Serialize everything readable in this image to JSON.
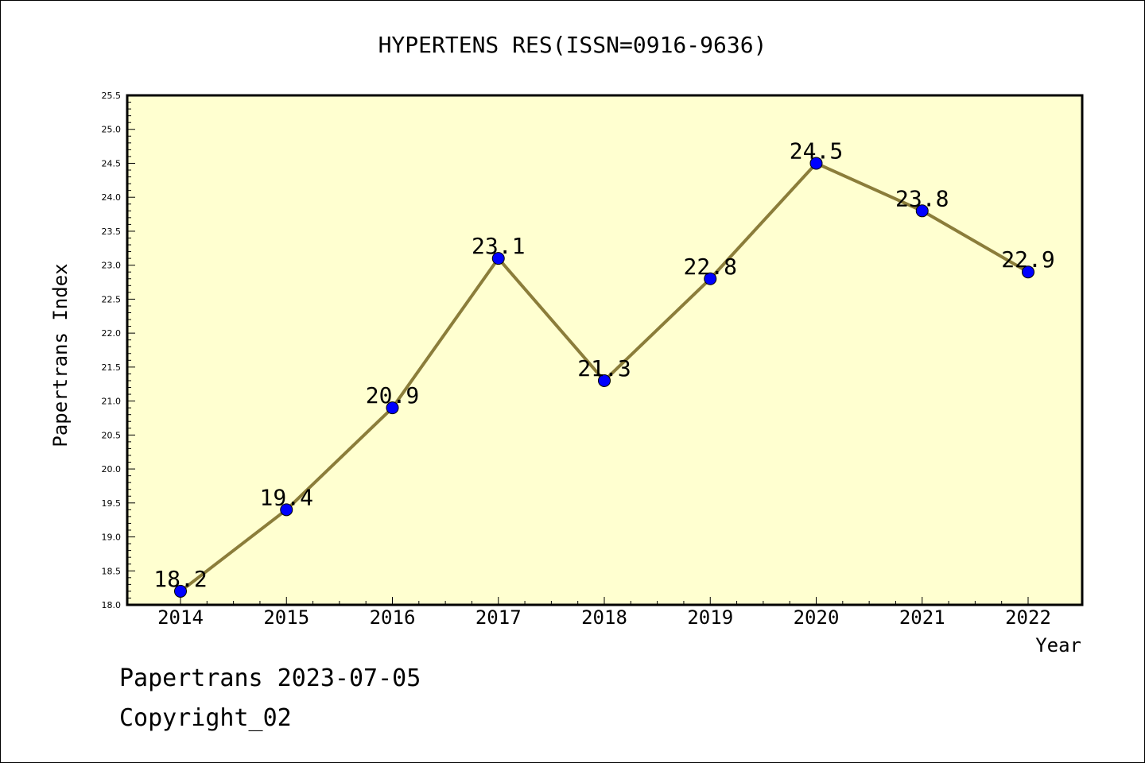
{
  "chart_data": {
    "type": "line",
    "title": "HYPERTENS RES(ISSN=0916-9636)",
    "xlabel": "Year",
    "ylabel": "Papertrans Index",
    "x": [
      "2014",
      "2015",
      "2016",
      "2017",
      "2018",
      "2019",
      "2020",
      "2021",
      "2022"
    ],
    "values": [
      18.2,
      19.4,
      20.9,
      23.1,
      21.3,
      22.8,
      24.5,
      23.8,
      22.9
    ],
    "data_labels": [
      "18.2",
      "19.4",
      "20.9",
      "23.1",
      "21.3",
      "22.8",
      "24.5",
      "23.8",
      "22.9"
    ],
    "ylim": [
      18.0,
      25.5
    ],
    "yticks": [
      "18.0",
      "18.5",
      "19.0",
      "19.5",
      "20.0",
      "20.5",
      "21.0",
      "21.5",
      "22.0",
      "22.5",
      "23.0",
      "23.5",
      "24.0",
      "24.5",
      "25.0",
      "25.5"
    ],
    "grid": false,
    "colors": {
      "plot_background": "#ffffd0",
      "line": "#8b7d3a",
      "marker": "#0000ff"
    }
  },
  "footer": {
    "line1": "Papertrans 2023-07-05",
    "line2": "Copyright_02"
  }
}
